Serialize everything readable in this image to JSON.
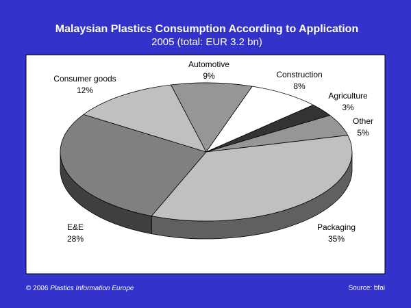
{
  "chart_data": {
    "type": "pie",
    "title": "Malaysian Plastics Consumption According to Application",
    "subtitle": "2005 (total: EUR 3.2 bn)",
    "categories": [
      "Automotive",
      "Construction",
      "Agriculture",
      "Other",
      "Packaging",
      "E&E",
      "Consumer goods"
    ],
    "values": [
      9,
      8,
      3,
      5,
      35,
      28,
      12
    ],
    "value_labels": [
      "9%",
      "8%",
      "3%",
      "5%",
      "35%",
      "28%",
      "12%"
    ],
    "colors": [
      "#969696",
      "#ffffff",
      "#333333",
      "#969696",
      "#c0c0c0",
      "#808080",
      "#c0c0c0"
    ],
    "notes": {
      "copyright": "© 2006",
      "publisher": "Plastics Information Europe",
      "source": "Source: bfai"
    }
  }
}
